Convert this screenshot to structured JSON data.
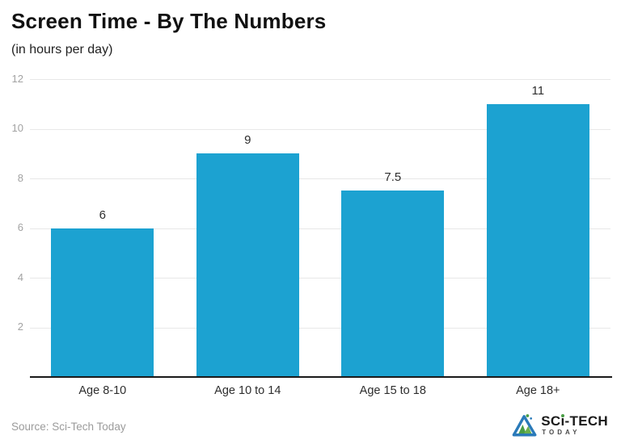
{
  "header": {
    "title": "Screen Time - By The Numbers",
    "subtitle": "(in hours per day)"
  },
  "chart_data": {
    "type": "bar",
    "title": "Screen Time - By The Numbers",
    "subtitle": "(in hours per day)",
    "categories": [
      "Age 8-10",
      "Age 10 to 14",
      "Age 15 to 18",
      "Age 18+"
    ],
    "values": [
      6,
      9,
      7.5,
      11
    ],
    "value_labels": [
      "6",
      "9",
      "7.5",
      "11"
    ],
    "xlabel": "",
    "ylabel": "",
    "ylim": [
      0,
      12
    ],
    "yticks": [
      2,
      4,
      6,
      8,
      10,
      12
    ],
    "grid": true,
    "legend": "none",
    "bar_color": "#1CA2D1",
    "gridline_color": "#e8e8e8",
    "axis_color": "#1a1a1a",
    "ytick_color": "#a3a3a3",
    "label_color": "#2e2e2e"
  },
  "footer": {
    "source": "Source: Sci-Tech Today"
  },
  "logo": {
    "text_part1": "SC",
    "text_part2": "i",
    "text_part3": "-TECH",
    "subtext": "TODAY",
    "triangle_blue": "#2a7ab9",
    "mountain_green": "#4a9e45",
    "mountain_green_light": "#6ab04c"
  }
}
